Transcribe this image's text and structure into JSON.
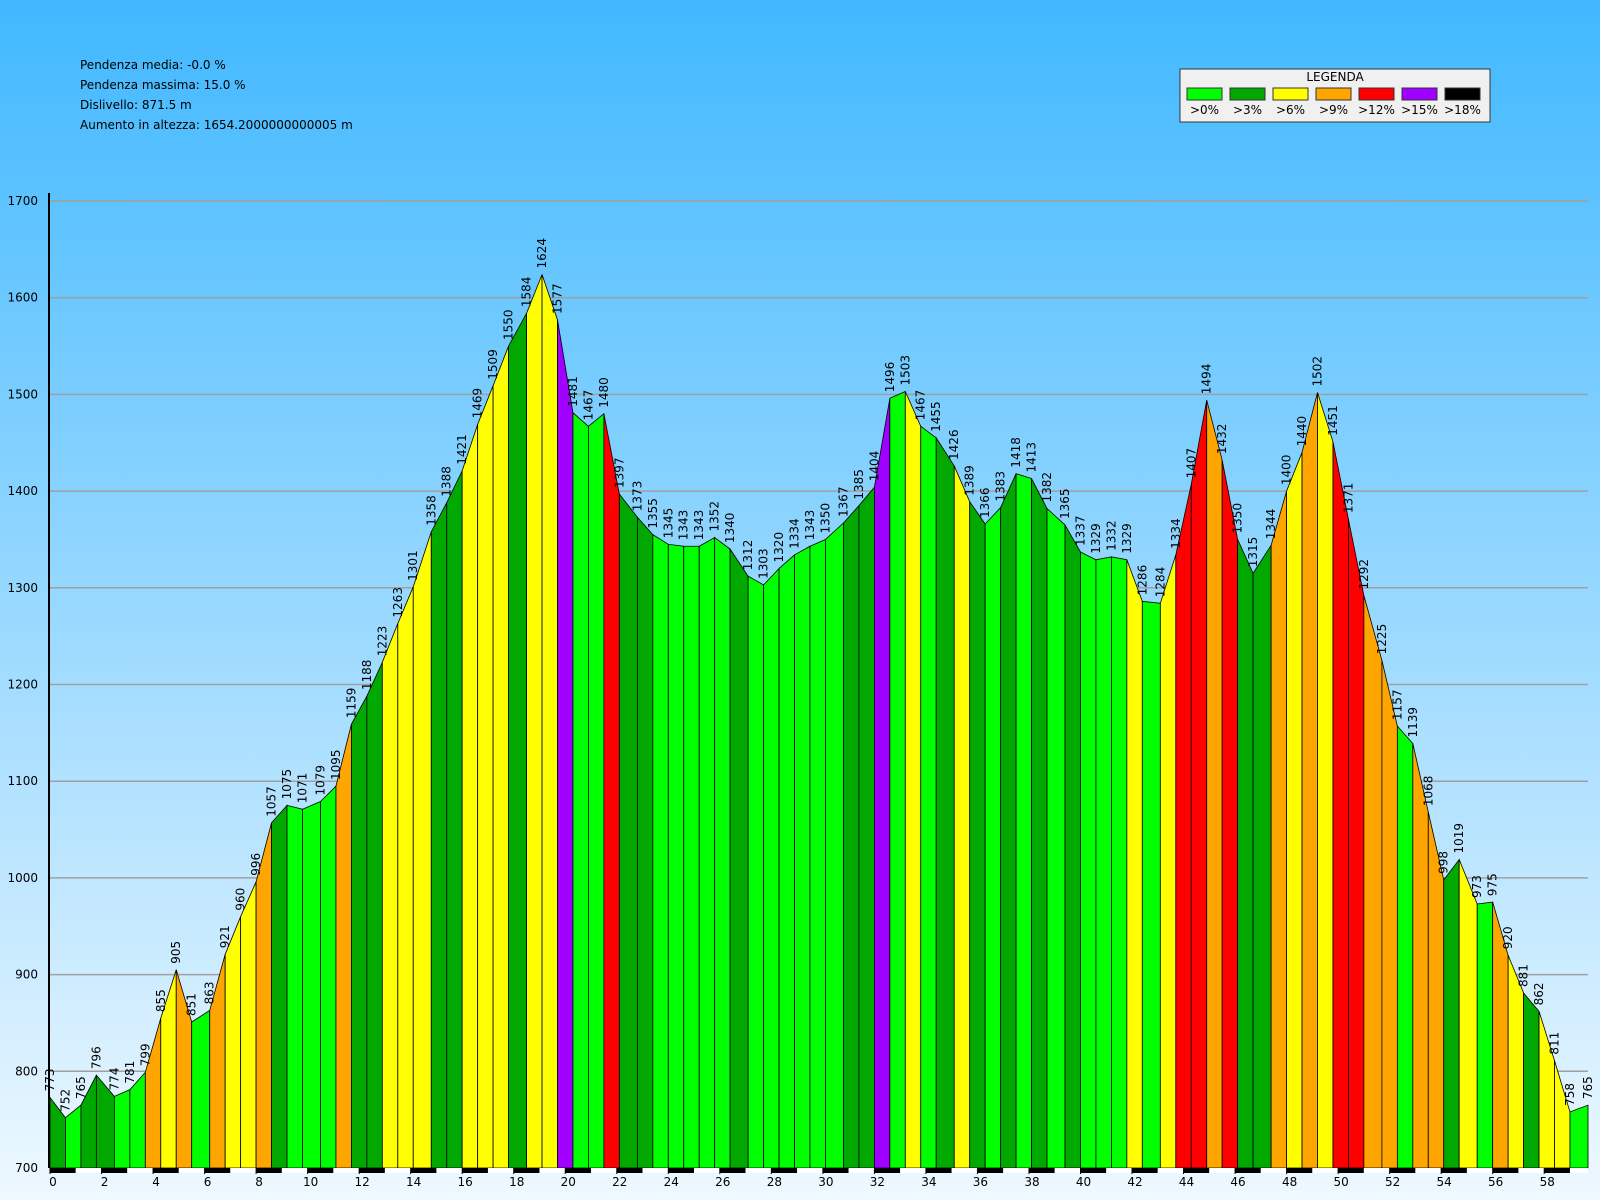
{
  "chart_data": {
    "type": "elevation-profile",
    "annotations": [
      "Pendenza media: -0.0 %",
      "Pendenza massima: 15.0 %",
      "Dislivello: 871.5 m",
      "Aumento in altezza: 1654.2000000000005 m"
    ],
    "legend_title": "LEGENDA",
    "legend": [
      {
        "label": ">0%",
        "color": "#00ff00"
      },
      {
        "label": ">3%",
        "color": "#00a800"
      },
      {
        "label": ">6%",
        "color": "#ffff00"
      },
      {
        "label": ">9%",
        "color": "#ffa500"
      },
      {
        "label": ">12%",
        "color": "#ff0000"
      },
      {
        "label": ">15%",
        "color": "#a000ff"
      },
      {
        "label": ">18%",
        "color": "#000000"
      }
    ],
    "x": [
      0,
      0.6,
      1.2,
      1.8,
      2.5,
      3.1,
      3.7,
      4.3,
      4.9,
      5.5,
      6.2,
      6.8,
      7.4,
      8.0,
      8.6,
      9.2,
      9.8,
      10.5,
      11.1,
      11.7,
      12.3,
      12.9,
      13.5,
      14.1,
      14.8,
      15.4,
      16.0,
      16.6,
      17.2,
      17.8,
      18.5,
      19.1,
      19.7,
      20.3,
      20.9,
      21.5,
      22.1,
      22.8,
      23.4,
      24.0,
      24.6,
      25.2,
      25.8,
      26.4,
      27.1,
      27.7,
      28.3,
      28.9,
      29.5,
      30.1,
      30.8,
      31.4,
      32.0,
      32.6,
      33.2,
      33.8,
      34.4,
      35.1,
      35.7,
      36.3,
      36.9,
      37.5,
      38.1,
      38.7,
      39.4,
      40.0,
      40.6,
      41.2,
      41.8,
      42.4,
      43.1,
      43.7,
      44.3,
      44.9,
      45.5,
      46.1,
      46.7,
      47.4,
      48.0,
      48.6,
      49.2,
      49.8,
      50.4,
      51.0,
      51.7,
      52.3,
      52.9,
      53.5,
      54.1,
      54.7,
      55.4,
      56.0,
      56.6,
      57.2,
      57.8,
      58.4,
      59.0,
      59.7
    ],
    "values": [
      773,
      752,
      765,
      796,
      774,
      781,
      799,
      855,
      905,
      851,
      863,
      921,
      960,
      996,
      1057,
      1075,
      1071,
      1079,
      1095,
      1159,
      1188,
      1223,
      1263,
      1301,
      1358,
      1388,
      1421,
      1469,
      1509,
      1550,
      1584,
      1624,
      1577,
      1481,
      1467,
      1480,
      1397,
      1373,
      1355,
      1345,
      1343,
      1343,
      1352,
      1340,
      1312,
      1303,
      1320,
      1334,
      1343,
      1350,
      1367,
      1385,
      1404,
      1496,
      1503,
      1467,
      1455,
      1426,
      1389,
      1366,
      1383,
      1418,
      1413,
      1382,
      1365,
      1337,
      1329,
      1332,
      1329,
      1286,
      1284,
      1334,
      1407,
      1494,
      1432,
      1350,
      1315,
      1344,
      1400,
      1440,
      1502,
      1451,
      1371,
      1292,
      1225,
      1157,
      1139,
      1068,
      998,
      1019,
      973,
      975,
      920,
      881,
      862,
      811,
      758,
      765
    ],
    "xlim": [
      0,
      59.7
    ],
    "xticks": [
      0,
      2,
      4,
      6,
      8,
      10,
      12,
      14,
      16,
      18,
      20,
      22,
      24,
      26,
      28,
      30,
      32,
      34,
      36,
      38,
      40,
      42,
      44,
      46,
      48,
      50,
      52,
      54,
      56,
      58
    ],
    "ylim": [
      700,
      1700
    ],
    "yticks": [
      700,
      800,
      900,
      1000,
      1100,
      1200,
      1300,
      1400,
      1500,
      1600,
      1700
    ],
    "grid": true
  }
}
